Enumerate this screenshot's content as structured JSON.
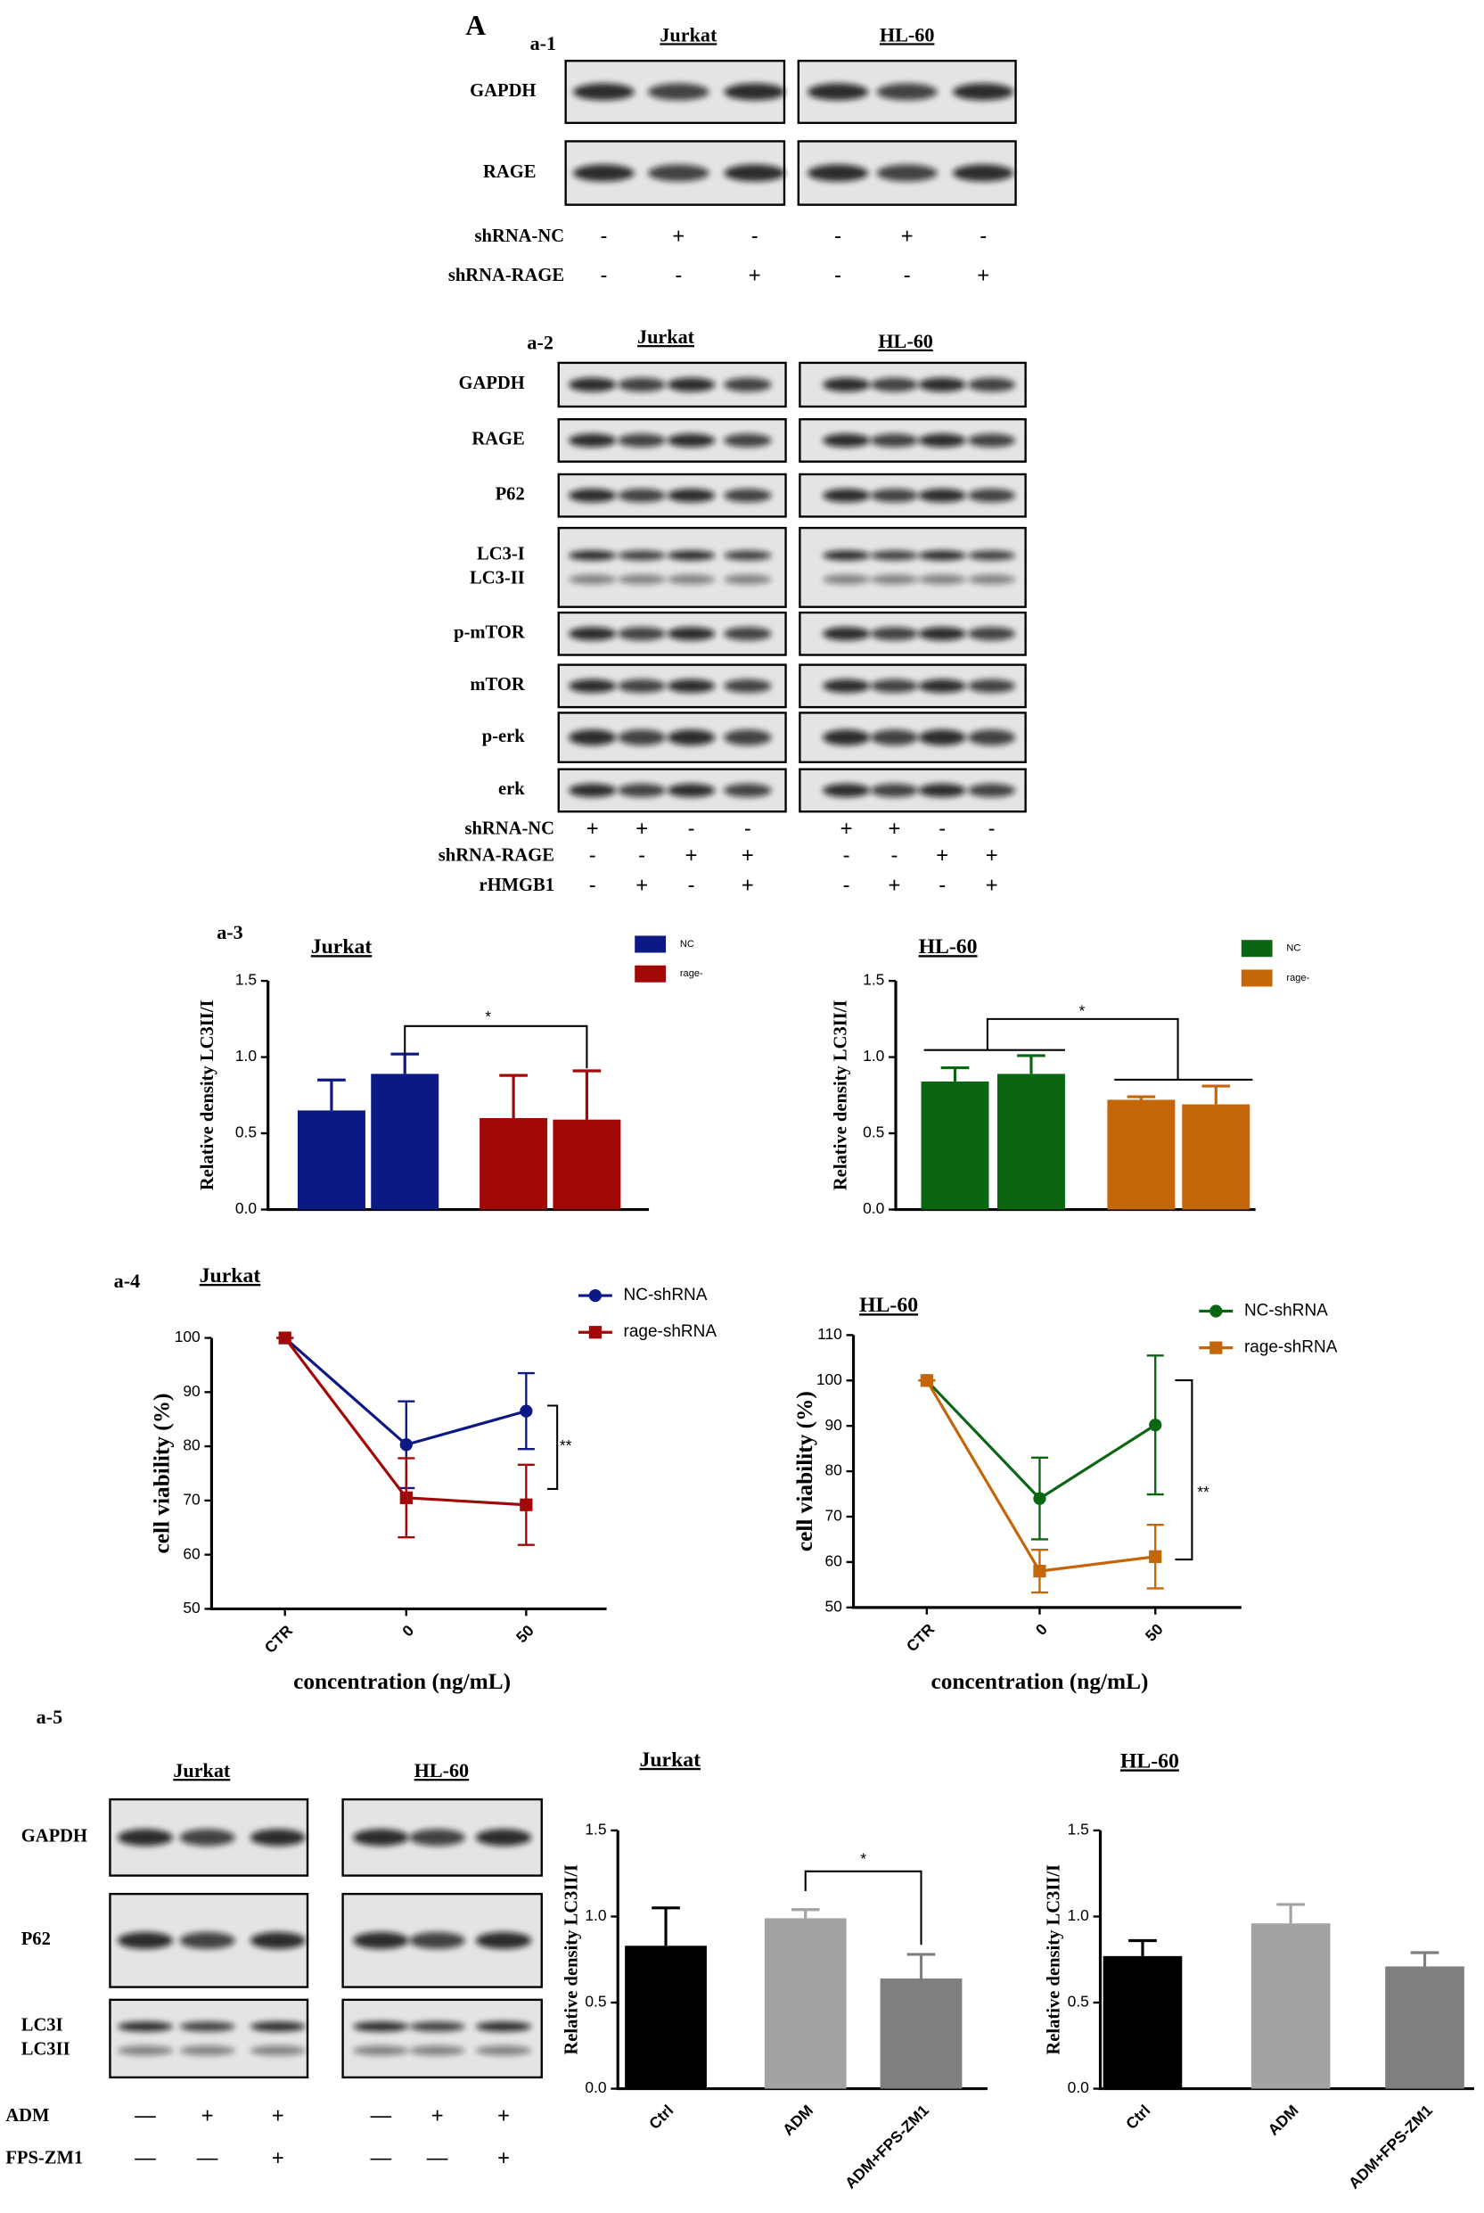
{
  "panel": "A",
  "blots": [
    {
      "label": "a-1",
      "groups": [
        "Jurkat",
        "HL-60"
      ],
      "rows": [
        [
          "GAPDH"
        ],
        [
          "RAGE"
        ]
      ],
      "conditions": [
        {
          "name": "shRNA-NC",
          "signs": [
            "-",
            "+",
            "-",
            "-",
            "+",
            "-"
          ]
        },
        {
          "name": "shRNA-RAGE",
          "signs": [
            "-",
            "-",
            "+",
            "-",
            "-",
            "+"
          ]
        }
      ]
    },
    {
      "label": "a-2",
      "groups": [
        "Jurkat",
        "HL-60"
      ],
      "rows": [
        [
          "GAPDH"
        ],
        [
          "RAGE"
        ],
        [
          "P62"
        ],
        [
          "LC3-I",
          "LC3-II"
        ],
        [
          "p-mTOR"
        ],
        [
          "mTOR"
        ],
        [
          "p-erk"
        ],
        [
          "erk"
        ]
      ],
      "conditions": [
        {
          "name": "shRNA-NC",
          "signs": [
            "+",
            "+",
            "-",
            "-",
            "+",
            "+",
            "-",
            "-"
          ]
        },
        {
          "name": "shRNA-RAGE",
          "signs": [
            "-",
            "-",
            "+",
            "+",
            "-",
            "-",
            "+",
            "+"
          ]
        },
        {
          "name": "rHMGB1",
          "signs": [
            "-",
            "+",
            "-",
            "+",
            "-",
            "+",
            "-",
            "+"
          ]
        }
      ]
    },
    {
      "label": "a-5",
      "groups": [
        "Jurkat",
        "HL-60"
      ],
      "rows": [
        [
          "GAPDH"
        ],
        [
          "P62"
        ],
        [
          "LC3I",
          "LC3II"
        ]
      ],
      "conditions": [
        {
          "name": "ADM",
          "signs": [
            "—",
            "+",
            "+",
            "—",
            "+",
            "+"
          ]
        },
        {
          "name": "FPS-ZM1",
          "signs": [
            "—",
            "—",
            "+",
            "—",
            "—",
            "+"
          ]
        }
      ]
    }
  ],
  "chart_data": [
    {
      "type": "bar",
      "label": "a-3",
      "title": "Jurkat",
      "y_label": "Relative density LC3II/I",
      "categories": [
        null,
        null,
        null,
        null
      ],
      "series": [
        {
          "name": "NC",
          "color": "#0c1884",
          "values": [
            0.65,
            0.89,
            null,
            null
          ],
          "errors": [
            0.2,
            0.13,
            null,
            null
          ]
        },
        {
          "name": "rage-",
          "color": "#a30808",
          "values": [
            null,
            null,
            0.6,
            0.59
          ],
          "errors": [
            null,
            null,
            0.28,
            0.32
          ]
        }
      ],
      "ylim": [
        0,
        1.5
      ],
      "yticks": [
        {
          "value": 0,
          "label": "0.0"
        },
        {
          "value": 0.5,
          "label": "0.5"
        },
        {
          "value": 1,
          "label": "1.0"
        },
        {
          "value": 1.5,
          "label": "1.5"
        }
      ],
      "annotation": "*"
    },
    {
      "type": "bar",
      "title": "HL-60",
      "y_label": "Relative density LC3II/I",
      "categories": [
        null,
        null,
        null,
        null
      ],
      "series": [
        {
          "name": "NC",
          "color": "#0b6613",
          "values": [
            0.84,
            0.89,
            null,
            null
          ],
          "errors": [
            0.09,
            0.12,
            null,
            null
          ]
        },
        {
          "name": "rage-",
          "color": "#c46508",
          "values": [
            null,
            null,
            0.72,
            0.69
          ],
          "errors": [
            null,
            null,
            0.02,
            0.12
          ]
        }
      ],
      "ylim": [
        0,
        1.5
      ],
      "yticks": [
        {
          "value": 0,
          "label": "0.0"
        },
        {
          "value": 0.5,
          "label": "0.5"
        },
        {
          "value": 1,
          "label": "1.0"
        },
        {
          "value": 1.5,
          "label": "1.5"
        }
      ],
      "annotation": "*"
    },
    {
      "type": "line",
      "label": "a-4",
      "title": "Jurkat",
      "y_label": "cell viability (%)",
      "x_label": "concentration (ng/mL)",
      "categories": [
        "CTR",
        "0",
        "50"
      ],
      "series": [
        {
          "name": "NC-shRNA",
          "color": "#0c1884",
          "marker": "circle",
          "values": [
            100,
            80.3,
            86.5
          ],
          "errors": [
            0,
            8,
            7
          ]
        },
        {
          "name": "rage-shRNA",
          "color": "#a30808",
          "marker": "square",
          "values": [
            100,
            70.5,
            69.2
          ],
          "errors": [
            0,
            7.3,
            7.4
          ]
        }
      ],
      "ylim": [
        50,
        100
      ],
      "yticks": [
        50,
        60,
        70,
        80,
        90,
        100
      ],
      "annotation": "**"
    },
    {
      "type": "line",
      "title": "HL-60",
      "y_label": "cell viability (%)",
      "x_label": "concentration (ng/mL)",
      "categories": [
        "CTR",
        "0",
        "50"
      ],
      "series": [
        {
          "name": "NC-shRNA",
          "color": "#0b6613",
          "marker": "circle",
          "values": [
            100,
            74,
            90.2
          ],
          "errors": [
            0,
            9,
            15.3
          ]
        },
        {
          "name": "rage-shRNA",
          "color": "#c46508",
          "marker": "square",
          "values": [
            100,
            58,
            61.2
          ],
          "errors": [
            0,
            4.7,
            7
          ]
        }
      ],
      "ylim": [
        50,
        110
      ],
      "yticks": [
        50,
        60,
        70,
        80,
        90,
        100,
        110
      ],
      "annotation": "**"
    },
    {
      "type": "bar",
      "title": "Jurkat",
      "y_label": "Relative density LC3II/I",
      "categories": [
        "Ctrl",
        "ADM",
        "ADM+FPS-ZM1"
      ],
      "values": [
        0.83,
        0.99,
        0.64
      ],
      "errors": [
        0.22,
        0.05,
        0.14
      ],
      "colors": [
        "#000000",
        "#a3a3a3",
        "#7f7f7f"
      ],
      "ylim": [
        0,
        1.5
      ],
      "yticks": [
        {
          "value": 0,
          "label": "0.0"
        },
        {
          "value": 0.5,
          "label": "0.5"
        },
        {
          "value": 1,
          "label": "1.0"
        },
        {
          "value": 1.5,
          "label": "1.5"
        }
      ],
      "annotation": "*"
    },
    {
      "type": "bar",
      "title": "HL-60",
      "y_label": "Relative density LC3II/I",
      "categories": [
        "Ctrl",
        "ADM",
        "ADM+FPS-ZM1"
      ],
      "values": [
        0.77,
        0.96,
        0.71
      ],
      "errors": [
        0.09,
        0.11,
        0.08
      ],
      "colors": [
        "#000000",
        "#a3a3a3",
        "#7f7f7f"
      ],
      "ylim": [
        0,
        1.5
      ],
      "yticks": [
        {
          "value": 0,
          "label": "0.0"
        },
        {
          "value": 0.5,
          "label": "0.5"
        },
        {
          "value": 1,
          "label": "1.0"
        },
        {
          "value": 1.5,
          "label": "1.5"
        }
      ]
    }
  ]
}
